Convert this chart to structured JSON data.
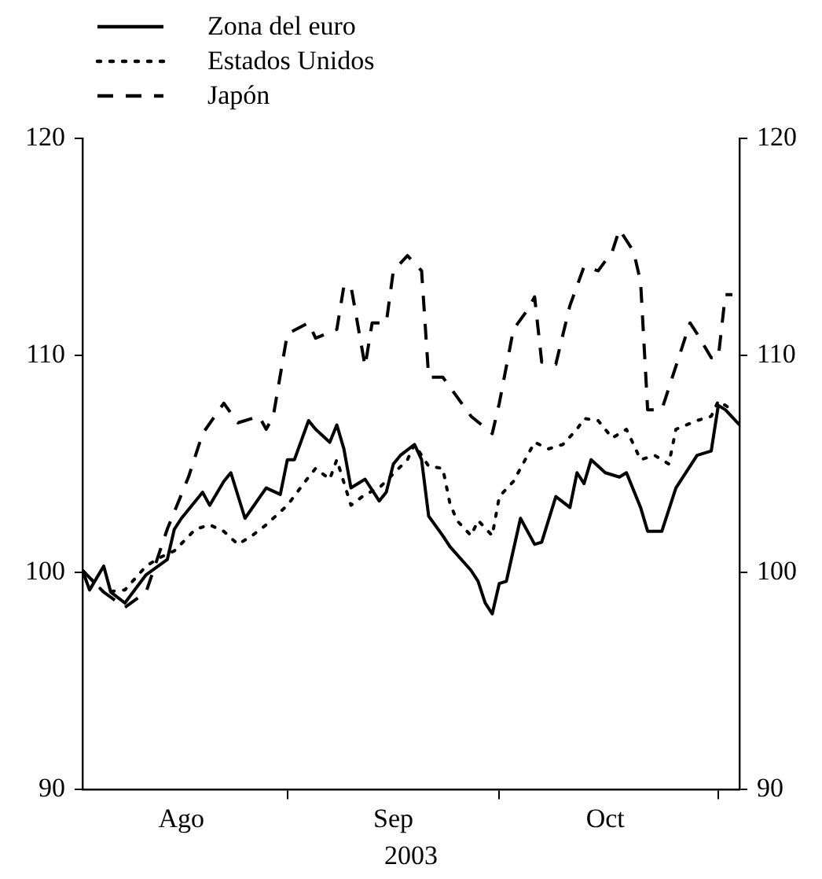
{
  "chart_data": {
    "type": "line",
    "xlabel": "2003",
    "legend": "top left",
    "grid": false,
    "marker": "none",
    "xlim": [
      "2003-08-03",
      "2003-11-04"
    ],
    "xticks": [
      {
        "value": "2003-08-17",
        "label": "Ago"
      },
      {
        "value": "2003-09-01",
        "label": null
      },
      {
        "value": "2003-09-16",
        "label": "Sep"
      },
      {
        "value": "2003-10-01",
        "label": null
      },
      {
        "value": "2003-10-16",
        "label": "Oct"
      },
      {
        "value": "2003-11-01",
        "label": null
      }
    ],
    "ylim": [
      90,
      120
    ],
    "yticks": [
      90,
      100,
      110,
      120
    ],
    "y2lim": [
      90,
      120
    ],
    "y2ticks": [
      90,
      100,
      110,
      120
    ],
    "series": [
      {
        "name": "Zona del euro",
        "color": "#000000",
        "line_style": "solid",
        "x": [
          "2003-08-03",
          "2003-08-04",
          "2003-08-06",
          "2003-08-07",
          "2003-08-09",
          "2003-08-12",
          "2003-08-15",
          "2003-08-16",
          "2003-08-17",
          "2003-08-20",
          "2003-08-21",
          "2003-08-23",
          "2003-08-24",
          "2003-08-26",
          "2003-08-29",
          "2003-08-31",
          "2003-09-01",
          "2003-09-02",
          "2003-09-04",
          "2003-09-05",
          "2003-09-07",
          "2003-09-08",
          "2003-09-09",
          "2003-09-10",
          "2003-09-12",
          "2003-09-14",
          "2003-09-15",
          "2003-09-16",
          "2003-09-17",
          "2003-09-19",
          "2003-09-20",
          "2003-09-21",
          "2003-09-23",
          "2003-09-24",
          "2003-09-27",
          "2003-09-28",
          "2003-09-29",
          "2003-09-30",
          "2003-10-01",
          "2003-10-02",
          "2003-10-04",
          "2003-10-06",
          "2003-10-07",
          "2003-10-09",
          "2003-10-11",
          "2003-10-12",
          "2003-10-13",
          "2003-10-14",
          "2003-10-16",
          "2003-10-18",
          "2003-10-19",
          "2003-10-21",
          "2003-10-22",
          "2003-10-24",
          "2003-10-26",
          "2003-10-29",
          "2003-10-31",
          "2003-11-01",
          "2003-11-02",
          "2003-11-04"
        ],
        "values": [
          100.1,
          99.2,
          100.3,
          99.1,
          98.6,
          99.9,
          100.6,
          102.0,
          102.5,
          103.7,
          103.1,
          104.2,
          104.6,
          102.5,
          103.9,
          103.6,
          105.2,
          105.2,
          107.0,
          106.6,
          106.0,
          106.8,
          105.7,
          103.9,
          104.3,
          103.3,
          103.7,
          105.0,
          105.4,
          105.9,
          105.2,
          102.6,
          101.7,
          101.2,
          100.1,
          99.6,
          98.6,
          98.1,
          99.5,
          99.6,
          102.5,
          101.3,
          101.4,
          103.5,
          103.0,
          104.6,
          104.1,
          105.2,
          104.6,
          104.4,
          104.6,
          103.0,
          101.9,
          101.9,
          103.9,
          105.4,
          105.6,
          107.7,
          107.5,
          106.8
        ]
      },
      {
        "name": "Estados Unidos",
        "color": "#000000",
        "line_style": "dotted",
        "x": [
          "2003-08-03",
          "2003-08-06",
          "2003-08-09",
          "2003-08-12",
          "2003-08-14",
          "2003-08-16",
          "2003-08-19",
          "2003-08-21",
          "2003-08-23",
          "2003-08-25",
          "2003-08-27",
          "2003-08-29",
          "2003-09-01",
          "2003-09-04",
          "2003-09-05",
          "2003-09-07",
          "2003-09-08",
          "2003-09-10",
          "2003-09-12",
          "2003-09-14",
          "2003-09-18",
          "2003-09-19",
          "2003-09-21",
          "2003-09-23",
          "2003-09-24",
          "2003-09-25",
          "2003-09-27",
          "2003-09-28",
          "2003-09-30",
          "2003-10-01",
          "2003-10-03",
          "2003-10-05",
          "2003-10-06",
          "2003-10-08",
          "2003-10-10",
          "2003-10-12",
          "2003-10-13",
          "2003-10-15",
          "2003-10-17",
          "2003-10-19",
          "2003-10-21",
          "2003-10-23",
          "2003-10-25",
          "2003-10-26",
          "2003-10-29",
          "2003-10-31",
          "2003-11-01",
          "2003-11-03"
        ],
        "values": [
          100.1,
          99.1,
          99.2,
          100.3,
          100.7,
          101.0,
          102.0,
          102.2,
          101.9,
          101.3,
          101.7,
          102.2,
          103.1,
          104.4,
          104.8,
          104.3,
          105.2,
          103.1,
          103.6,
          103.9,
          105.2,
          105.9,
          104.9,
          104.8,
          103.2,
          102.4,
          101.7,
          102.4,
          101.7,
          103.5,
          104.2,
          105.4,
          106.0,
          105.7,
          105.9,
          106.6,
          107.1,
          107.0,
          106.2,
          106.6,
          105.2,
          105.4,
          105.0,
          106.6,
          107.0,
          107.2,
          107.9,
          107.5
        ]
      },
      {
        "name": "Japón",
        "color": "#000000",
        "line_style": "dashed",
        "x": [
          "2003-08-03",
          "2003-08-06",
          "2003-08-09",
          "2003-08-12",
          "2003-08-15",
          "2003-08-18",
          "2003-08-20",
          "2003-08-23",
          "2003-08-25",
          "2003-08-28",
          "2003-08-29",
          "2003-08-30",
          "2003-09-01",
          "2003-09-04",
          "2003-09-05",
          "2003-09-08",
          "2003-09-09",
          "2003-09-10",
          "2003-09-12",
          "2003-09-13",
          "2003-09-15",
          "2003-09-16",
          "2003-09-18",
          "2003-09-20",
          "2003-09-21",
          "2003-09-23",
          "2003-09-25",
          "2003-09-27",
          "2003-09-30",
          "2003-10-01",
          "2003-10-03",
          "2003-10-05",
          "2003-10-06",
          "2003-10-07",
          "2003-10-09",
          "2003-10-11",
          "2003-10-13",
          "2003-10-15",
          "2003-10-17",
          "2003-10-18",
          "2003-10-20",
          "2003-10-21",
          "2003-10-22",
          "2003-10-24",
          "2003-10-26",
          "2003-10-28",
          "2003-10-29",
          "2003-10-31",
          "2003-11-01",
          "2003-11-02",
          "2003-11-03"
        ],
        "values": [
          100.1,
          99.1,
          98.4,
          99.1,
          102.0,
          104.4,
          106.4,
          107.8,
          106.9,
          107.2,
          106.6,
          107.2,
          111.0,
          111.5,
          110.8,
          111.2,
          113.2,
          113.2,
          109.5,
          111.5,
          111.5,
          113.9,
          114.6,
          113.9,
          109.0,
          109.0,
          108.1,
          107.2,
          106.4,
          107.8,
          111.2,
          112.1,
          112.7,
          109.7,
          109.6,
          112.3,
          114.1,
          113.9,
          114.8,
          115.8,
          114.8,
          113.4,
          107.5,
          107.5,
          109.5,
          111.5,
          111.0,
          109.9,
          109.9,
          112.8,
          112.8
        ]
      }
    ]
  }
}
